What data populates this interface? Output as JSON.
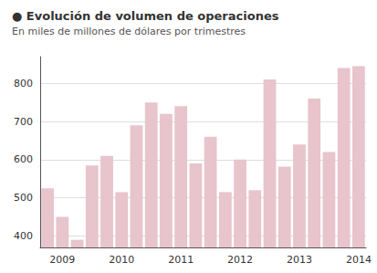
{
  "chart_data": {
    "type": "bar",
    "title": "● Evolución de volumen de operaciones",
    "subtitle": "En miles de millones de dólares por trimestres",
    "categories": [
      null,
      "2009",
      null,
      null,
      null,
      "2010",
      null,
      null,
      null,
      "2011",
      null,
      null,
      null,
      "2012",
      null,
      null,
      null,
      "2013",
      null,
      null,
      null,
      "2014"
    ],
    "values": [
      525,
      450,
      390,
      585,
      610,
      515,
      690,
      750,
      720,
      740,
      590,
      660,
      515,
      600,
      520,
      810,
      582,
      640,
      760,
      620,
      840,
      845
    ],
    "color": "#e8c4cc",
    "ylim": [
      370,
      870
    ],
    "yticks": [
      400,
      500,
      600,
      700,
      800
    ],
    "grid": true
  }
}
